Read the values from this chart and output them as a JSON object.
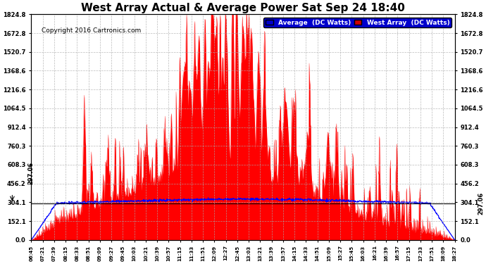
{
  "title": "West Array Actual & Average Power Sat Sep 24 18:40",
  "copyright": "Copyright 2016 Cartronics.com",
  "ymax": 1824.8,
  "ymin": 0.0,
  "yticks": [
    0.0,
    152.1,
    304.1,
    456.2,
    608.3,
    760.3,
    912.4,
    1064.5,
    1216.6,
    1368.6,
    1520.7,
    1672.8,
    1824.8
  ],
  "hline_value": 297.06,
  "hline_label": "297.06",
  "legend_avg_label": "Average  (DC Watts)",
  "legend_west_label": "West Array  (DC Watts)",
  "legend_avg_bg": "#0000CC",
  "legend_west_bg": "#CC0000",
  "background_color": "#ffffff",
  "grid_color": "#aaaaaa",
  "west_array_color": "#FF0000",
  "avg_line_color": "#0000FF",
  "title_fontsize": 11,
  "copyright_fontsize": 6.5,
  "xtick_labels": [
    "06:45",
    "07:21",
    "07:39",
    "08:15",
    "08:33",
    "08:51",
    "09:09",
    "09:27",
    "09:45",
    "10:03",
    "10:21",
    "10:39",
    "10:57",
    "11:15",
    "11:33",
    "11:51",
    "12:09",
    "12:27",
    "12:45",
    "13:03",
    "13:21",
    "13:39",
    "13:57",
    "14:15",
    "14:33",
    "14:51",
    "15:09",
    "15:27",
    "15:45",
    "16:03",
    "16:21",
    "16:39",
    "16:57",
    "17:15",
    "17:33",
    "17:51",
    "18:09",
    "18:27"
  ]
}
